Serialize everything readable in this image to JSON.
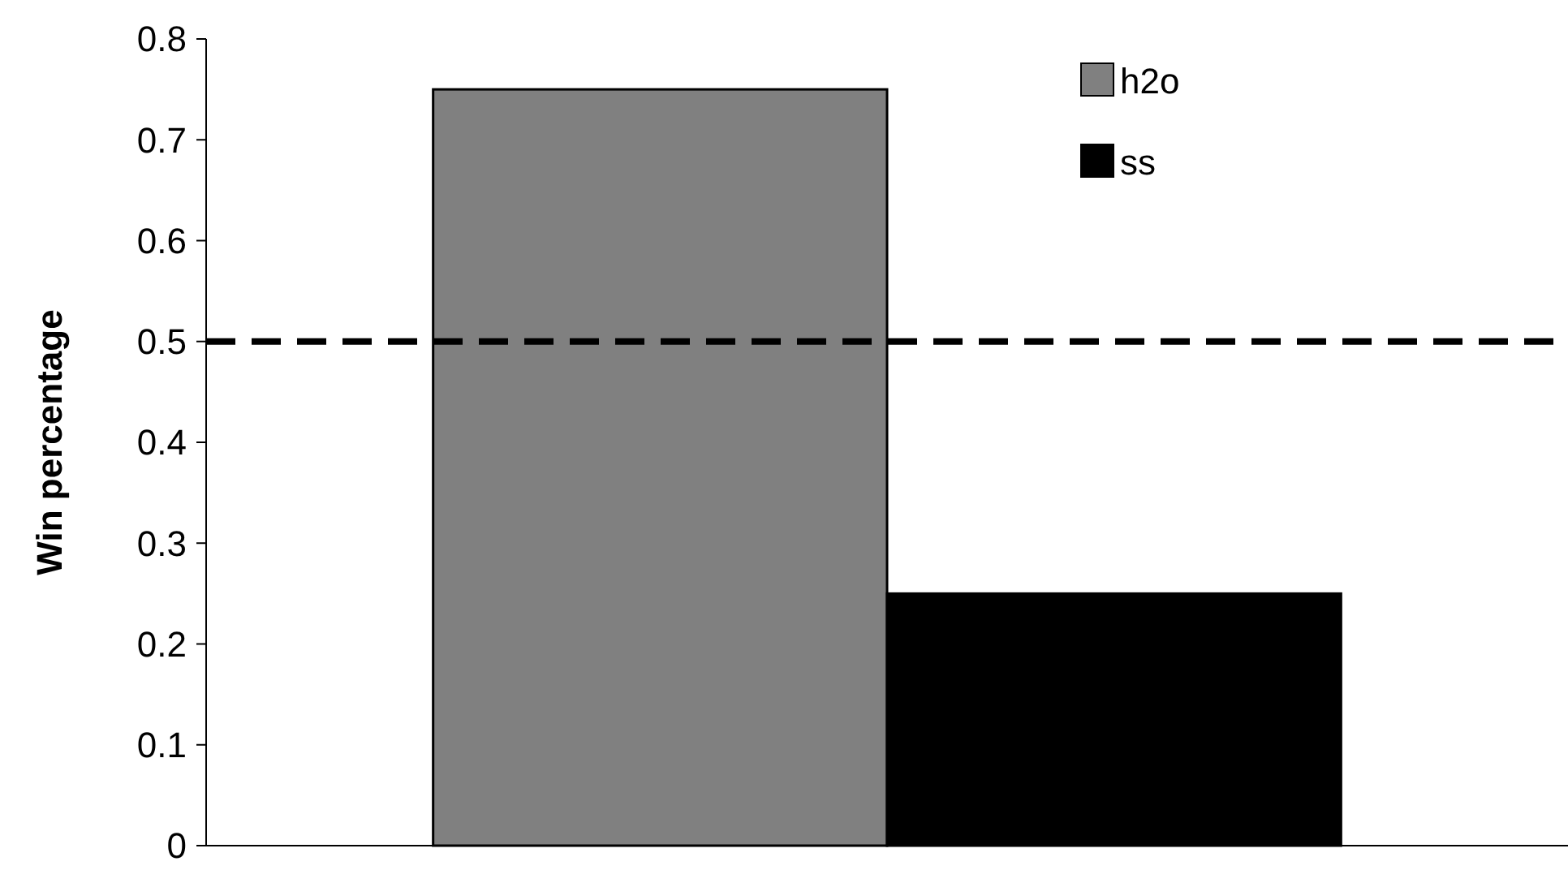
{
  "chart_data": {
    "type": "bar",
    "ylabel": "Win percentage",
    "categories": [
      null
    ],
    "series": [
      {
        "name": "h2o",
        "color": "#808080",
        "values": [
          0.75
        ]
      },
      {
        "name": "ss",
        "color": "#000000",
        "values": [
          0.25
        ]
      }
    ],
    "ylim": [
      0,
      0.8
    ],
    "yticks": [
      0,
      0.1,
      0.2,
      0.3,
      0.4,
      0.5,
      0.6,
      0.7,
      0.8
    ],
    "grid": false,
    "legend": "top right",
    "ref_lines": [
      {
        "axis": "y",
        "value": 0.5,
        "color": "#000000",
        "line_style": "dashed"
      }
    ]
  }
}
